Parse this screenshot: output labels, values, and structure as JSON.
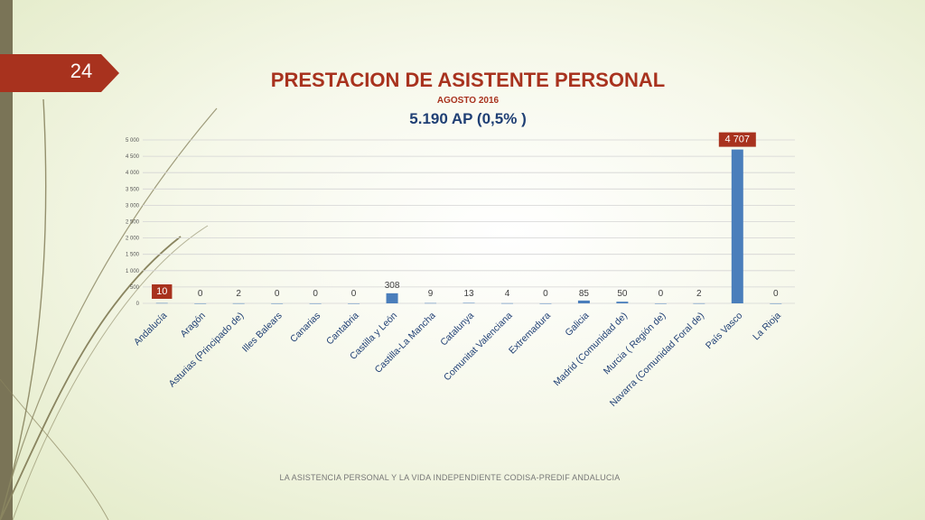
{
  "slide": {
    "number": "24",
    "title": "PRESTACION DE ASISTENTE PERSONAL",
    "subtitle": "AGOSTO 2016",
    "headline": "5.190 AP   (0,5% )",
    "footer": "LA ASISTENCIA PERSONAL Y LA VIDA INDEPENDIENTE CODISA-PREDIF ANDALUCIA"
  },
  "colors": {
    "accent": "#a8321e",
    "bar": "#4a7ebb",
    "navy": "#1f3f74",
    "sidebar": "#7a7457",
    "deco_line": "#8a8560"
  },
  "chart_data": {
    "type": "bar",
    "categories": [
      "Andalucía",
      "Aragón",
      "Asturias (Principado de)",
      "Illes Balears",
      "Canarias",
      "Cantabria",
      "Castilla y León",
      "Castilla-La Mancha",
      "Catalunya",
      "Comunitat Valenciana",
      "Extremadura",
      "Galicia",
      "Madrid (Comunidad de)",
      "Murcia ( Región de)",
      "Navarra (Comunidad Foral de)",
      "País Vasco",
      "La Rioja"
    ],
    "values": [
      10,
      0,
      2,
      0,
      0,
      0,
      308,
      9,
      13,
      4,
      0,
      85,
      50,
      0,
      2,
      4707,
      0
    ],
    "data_labels": [
      "10",
      "0",
      "2",
      "0",
      "0",
      "0",
      "308",
      "9",
      "13",
      "4",
      "0",
      "85",
      "50",
      "0",
      "2",
      "4 707",
      "0"
    ],
    "y_ticks": [
      0,
      500,
      1000,
      1500,
      2000,
      2500,
      3000,
      3500,
      4000,
      4500,
      5000
    ],
    "y_tick_labels": [
      "0",
      "500",
      "1 000",
      "1 500",
      "2 000",
      "2 500",
      "3 000",
      "3 500",
      "4 000",
      "4 500",
      "5 000"
    ],
    "ylim": [
      0,
      5000
    ],
    "grid": true,
    "highlighted_labels": [
      "Andalucía",
      "País Vasco"
    ]
  }
}
